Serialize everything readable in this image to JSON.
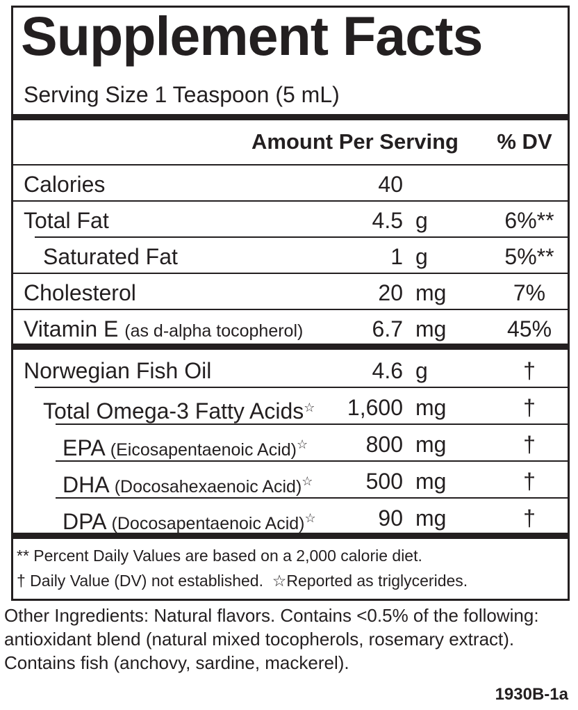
{
  "header": {
    "title": "Supplement Facts",
    "serving_size": "Serving Size 1 Teaspoon (5 mL)"
  },
  "table": {
    "columns": [
      "Amount Per Serving",
      "% DV"
    ],
    "sections": [
      {
        "rows": [
          {
            "name": "Calories",
            "amount": "40"
          },
          {
            "name": "Total Fat",
            "amount": "4.5",
            "unit": "g",
            "dv": "6%**"
          },
          {
            "name": "Saturated Fat",
            "amount": "1",
            "unit": "g",
            "dv": "5%**"
          },
          {
            "name": "Cholesterol",
            "amount": "20",
            "unit": "mg",
            "dv": "7%"
          },
          {
            "name": "Vitamin E",
            "note": "(as d-alpha tocopherol)",
            "amount": "6.7",
            "unit": "mg",
            "dv": "45%"
          }
        ]
      },
      {
        "rows": [
          {
            "name": "Norwegian Fish Oil",
            "amount": "4.6",
            "unit": "g",
            "dv": "†"
          },
          {
            "name": "Total Omega-3 Fatty Acids",
            "mark": "☆",
            "amount": "1,600",
            "unit": "mg",
            "dv": "†"
          },
          {
            "name": "EPA",
            "note": "(Eicosapentaenoic Acid)",
            "mark": "☆",
            "amount": "800",
            "unit": "mg",
            "dv": "†"
          },
          {
            "name": "DHA",
            "note": "(Docosahexaenoic Acid)",
            "mark": "☆",
            "amount": "500",
            "unit": "mg",
            "dv": "†"
          },
          {
            "name": "DPA",
            "note": "(Docosapentaenoic Acid)",
            "mark": "☆",
            "amount": "90",
            "unit": "mg",
            "dv": "†"
          }
        ]
      }
    ]
  },
  "footnotes": [
    "** Percent Daily Values are based on a 2,000 calorie diet.",
    "† Daily Value (DV) not established.",
    "☆Reported as triglycerides."
  ],
  "other_ingredients": "Other Ingredients: Natural flavors. Contains <0.5% of the following: antioxidant blend (natural mixed tocopherols, rosemary extract). Contains fish (anchovy, sardine, mackerel).",
  "code": "1930B-1a"
}
